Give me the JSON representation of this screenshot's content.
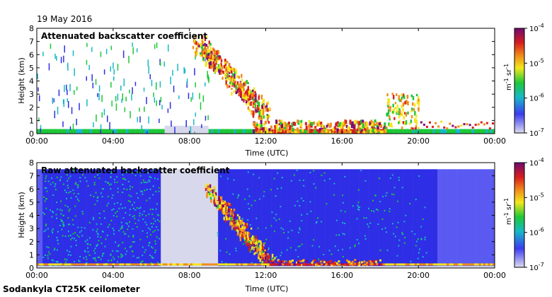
{
  "header": {
    "date": "19 May 2016"
  },
  "footer": {
    "station": "Sodankyla CT25K ceilometer"
  },
  "colors": {
    "low": "#d8d8ec",
    "blue": "#2e2ee6",
    "green": "#1cc837",
    "yellow": "#f4e61a",
    "orange": "#f08a1a",
    "red": "#d81e1e",
    "top": "#7a0a7a"
  },
  "colorbar": {
    "labels": [
      "10",
      "10",
      "10",
      "10"
    ],
    "exponents": [
      "-4",
      "-5",
      "-6",
      "-7"
    ],
    "unit": "m",
    "unit_exp": "-1",
    "unit_sr": "sr",
    "unit_sr_exp": "-1"
  },
  "chart_data": [
    {
      "type": "heatmap",
      "title": "Attenuated backscatter coefficient",
      "xlabel": "Time (UTC)",
      "ylabel": "Height (km)",
      "xticks": [
        "00:00",
        "04:00",
        "08:00",
        "12:00",
        "16:00",
        "20:00",
        "00:00"
      ],
      "yticks": [
        "0",
        "1",
        "2",
        "3",
        "4",
        "5",
        "6",
        "7",
        "8"
      ],
      "xlim_hours": [
        0,
        24
      ],
      "ylim_km": [
        0,
        8
      ],
      "colorbar_range": [
        "1e-7",
        "1e-4"
      ],
      "colorbar_scale": "log",
      "features": [
        {
          "name": "surface layer",
          "t_start": 0,
          "t_end": 24,
          "h_top": 0.3
        },
        {
          "name": "descending cloud",
          "t_start": 8.5,
          "t_end": 11.5,
          "h_start": 7.0,
          "h_end": 1.5
        },
        {
          "name": "low boundary layer",
          "t_start": 11.5,
          "t_end": 18.0,
          "h_top": 1.0
        },
        {
          "name": "evening cloud",
          "t_start": 18.5,
          "t_end": 19.5,
          "h_top": 3.0
        }
      ]
    },
    {
      "type": "heatmap",
      "title": "Raw attenuated backscatter coefficient",
      "xlabel": "Time (UTC)",
      "ylabel": "Height (km)",
      "xticks": [
        "00:00",
        "04:00",
        "08:00",
        "12:00",
        "16:00",
        "20:00",
        "00:00"
      ],
      "yticks": [
        "0",
        "1",
        "2",
        "3",
        "4",
        "5",
        "6",
        "7",
        "8"
      ],
      "xlim_hours": [
        0,
        24
      ],
      "ylim_km": [
        0,
        8
      ],
      "colorbar_range": [
        "1e-7",
        "1e-4"
      ],
      "colorbar_scale": "log",
      "features": [
        {
          "name": "noise field",
          "t_start": 0,
          "t_end": 24,
          "h_top": 7.5
        },
        {
          "name": "descending cloud",
          "t_start": 9.0,
          "t_end": 12.0,
          "h_start": 6.0,
          "h_end": 0.5
        },
        {
          "name": "low boundary layer",
          "t_start": 12.0,
          "t_end": 18.0,
          "h_top": 0.5
        }
      ]
    }
  ]
}
